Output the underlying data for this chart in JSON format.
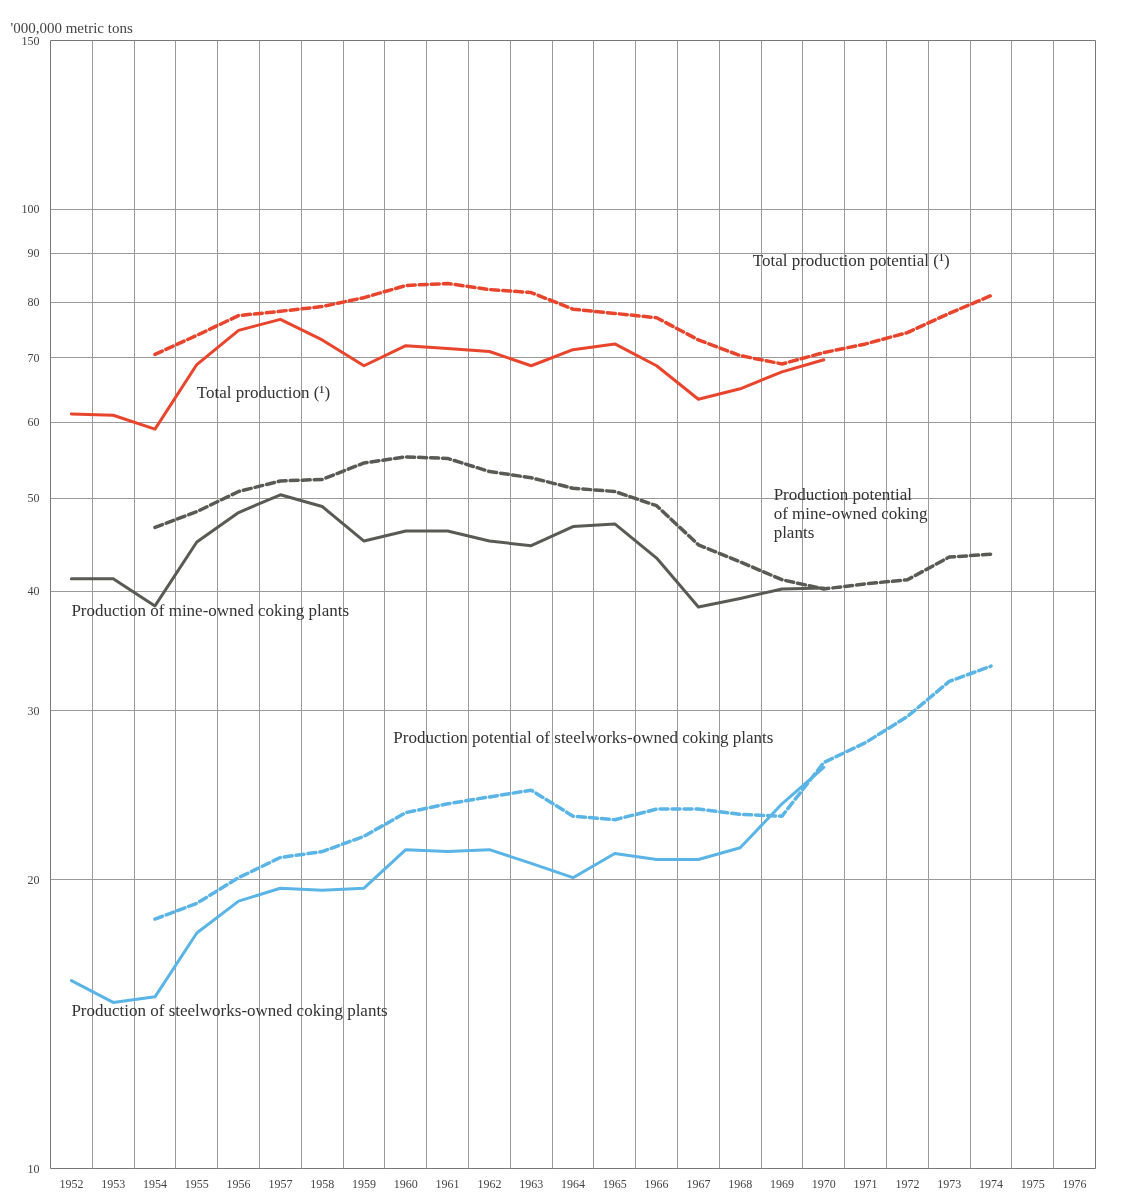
{
  "chart_data": {
    "type": "line",
    "ylabel": "'000,000 metric tons",
    "log": true,
    "grid": true,
    "legend": false,
    "x": [
      1952,
      1953,
      1954,
      1955,
      1956,
      1957,
      1958,
      1959,
      1960,
      1961,
      1962,
      1963,
      1964,
      1965,
      1966,
      1967,
      1968,
      1969,
      1970,
      1971,
      1972,
      1973,
      1974
    ],
    "xlim": [
      1951.5,
      1976.5
    ],
    "xticks": [
      1952,
      1953,
      1954,
      1955,
      1956,
      1957,
      1958,
      1959,
      1960,
      1961,
      1962,
      1963,
      1964,
      1965,
      1966,
      1967,
      1968,
      1969,
      1970,
      1971,
      1972,
      1973,
      1974,
      1975,
      1976
    ],
    "ylim": [
      10,
      150
    ],
    "yticks": [
      10,
      20,
      30,
      40,
      50,
      60,
      70,
      80,
      90,
      100,
      150
    ],
    "series": [
      {
        "name": "Total production (¹)",
        "color": "#e8452c",
        "line_style": "solid",
        "values": [
          61.2,
          61.0,
          59.0,
          68.9,
          74.8,
          76.8,
          73.1,
          68.7,
          72.1,
          71.6,
          71.1,
          68.7,
          71.4,
          72.4,
          68.7,
          63.4,
          65.0,
          67.7,
          69.7,
          null,
          null,
          null,
          null
        ]
      },
      {
        "name": "Total production potential (¹)",
        "color": "#e8452c",
        "line_style": "dashed",
        "values": [
          null,
          null,
          70.6,
          73.9,
          77.5,
          78.3,
          79.2,
          80.9,
          83.3,
          83.7,
          82.5,
          81.9,
          78.7,
          77.9,
          77.1,
          73.1,
          70.4,
          69.0,
          70.9,
          72.4,
          74.4,
          77.9,
          81.3
        ]
      },
      {
        "name": "Production of mine-owned coking plants",
        "color": "#5a5a55",
        "line_style": "solid",
        "values": [
          41.2,
          41.2,
          38.6,
          45.0,
          48.3,
          50.4,
          49.0,
          45.1,
          46.2,
          46.2,
          45.1,
          44.6,
          46.7,
          47.0,
          43.3,
          38.5,
          39.3,
          40.2,
          40.3,
          null,
          null,
          null,
          null
        ]
      },
      {
        "name": "Production potential of mine-owned coking plants",
        "color": "#5a5a55",
        "line_style": "dashed",
        "values": [
          null,
          null,
          46.6,
          48.4,
          50.8,
          52.1,
          52.3,
          54.4,
          55.2,
          55.0,
          53.3,
          52.5,
          51.2,
          50.8,
          49.1,
          44.7,
          42.9,
          41.1,
          40.2,
          40.7,
          41.1,
          43.4,
          43.7
        ]
      },
      {
        "name": "Production of steelworks-owned coking plants",
        "color": "#5ab4e6",
        "line_style": "solid",
        "values": [
          15.7,
          14.9,
          15.1,
          17.6,
          19.0,
          19.6,
          19.5,
          19.6,
          21.5,
          21.4,
          21.5,
          20.8,
          20.1,
          21.3,
          21.0,
          21.0,
          21.6,
          24.0,
          26.2,
          null,
          null,
          null,
          null
        ]
      },
      {
        "name": "Production potential of steelworks-owned coking plants",
        "color": "#5ab4e6",
        "line_style": "dashed",
        "values": [
          null,
          null,
          18.2,
          18.9,
          20.1,
          21.1,
          21.4,
          22.2,
          23.5,
          24.0,
          24.4,
          24.8,
          23.3,
          23.1,
          23.7,
          23.7,
          23.4,
          23.3,
          26.5,
          27.8,
          29.6,
          32.2,
          33.4
        ]
      }
    ]
  }
}
